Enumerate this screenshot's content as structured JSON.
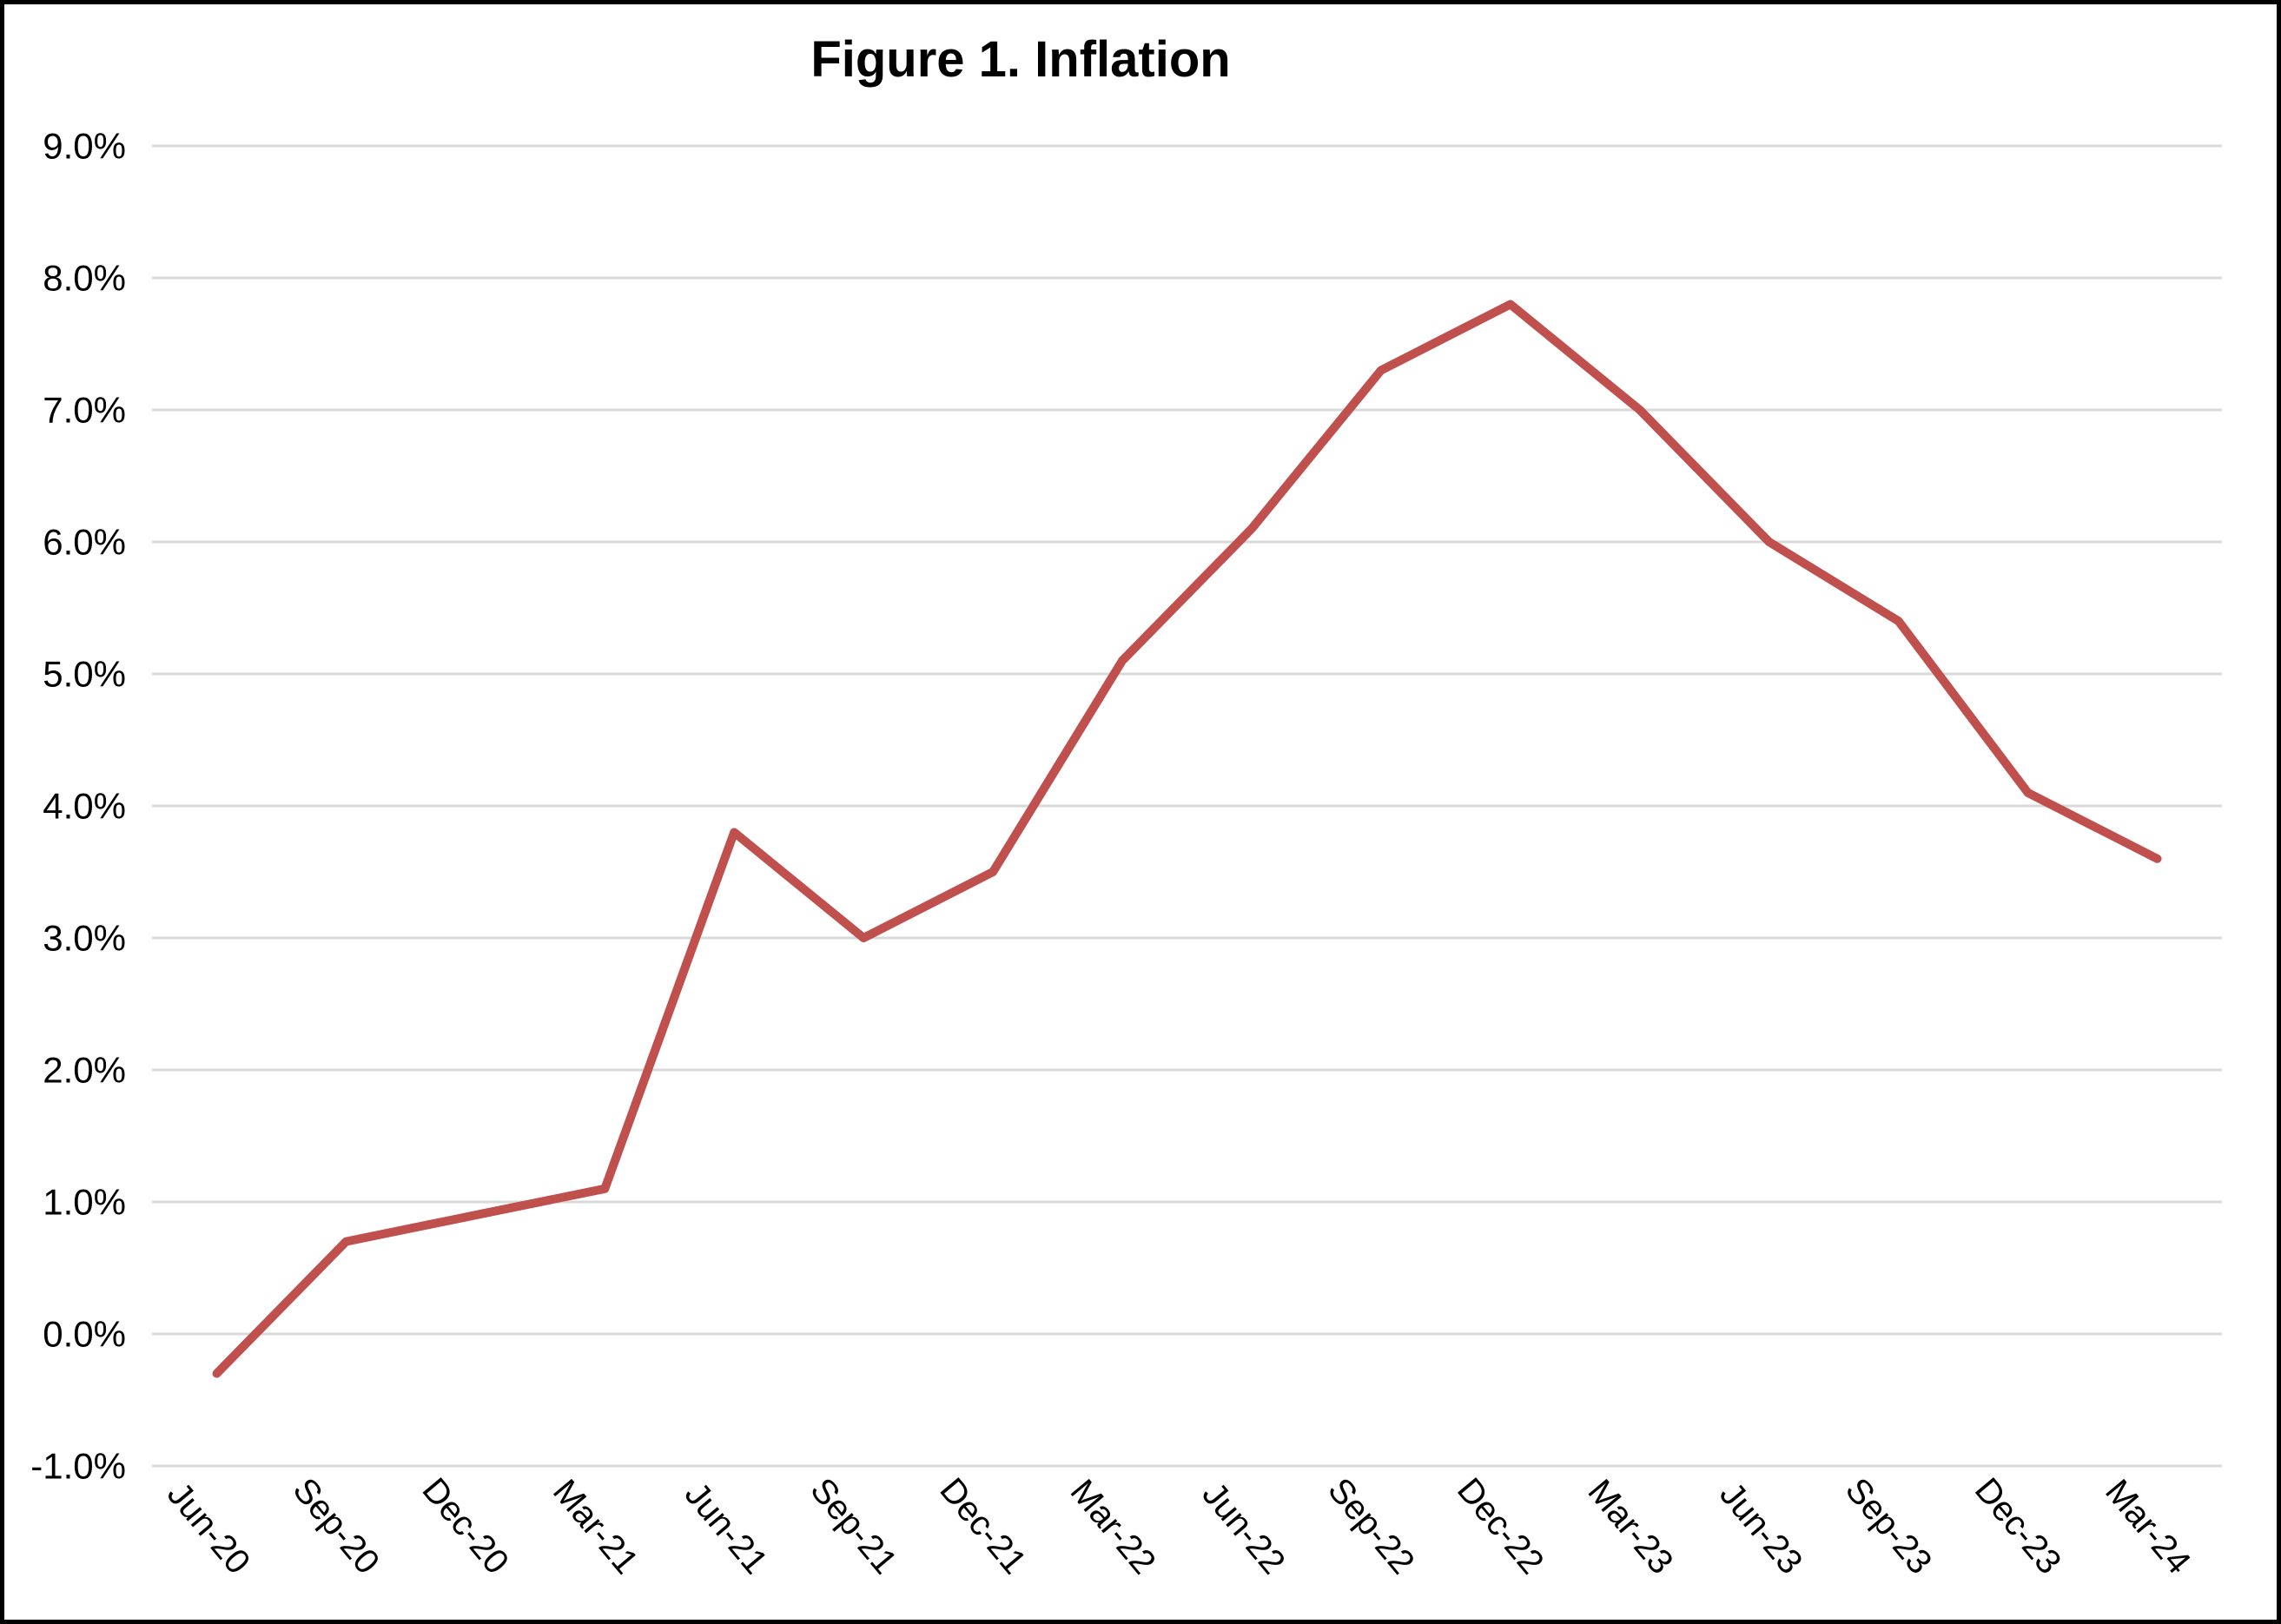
{
  "chart_data": {
    "type": "line",
    "title": "Figure 1. Inflation",
    "xlabel": "",
    "ylabel": "",
    "categories": [
      "Jun-20",
      "Sep-20",
      "Dec-20",
      "Mar-21",
      "Jun-21",
      "Sep-21",
      "Dec-21",
      "Mar-22",
      "Jun-22",
      "Sep-22",
      "Dec-22",
      "Mar-23",
      "Jun-23",
      "Sep-23",
      "Dec-23",
      "Mar-24"
    ],
    "values": [
      -0.3,
      0.7,
      0.9,
      1.1,
      3.8,
      3.0,
      3.5,
      5.1,
      6.1,
      7.3,
      7.8,
      7.0,
      6.0,
      5.4,
      4.1,
      3.6
    ],
    "series_name": "Inflation",
    "ylim": [
      -1,
      9
    ],
    "y_ticks": [
      {
        "value": 9,
        "label": "9.0%"
      },
      {
        "value": 8,
        "label": "8.0%"
      },
      {
        "value": 7,
        "label": "7.0%"
      },
      {
        "value": 6,
        "label": "6.0%"
      },
      {
        "value": 5,
        "label": "5.0%"
      },
      {
        "value": 4,
        "label": "4.0%"
      },
      {
        "value": 3,
        "label": "3.0%"
      },
      {
        "value": 2,
        "label": "2.0%"
      },
      {
        "value": 1,
        "label": "1.0%"
      },
      {
        "value": 0,
        "label": "0.0%"
      },
      {
        "value": -1,
        "label": "-1.0%"
      }
    ],
    "grid": true,
    "legend": "none",
    "colors": {
      "line": "#C0504D",
      "gridline": "#D9D9D9",
      "text": "#000000",
      "background": "#FFFFFF",
      "frame_border": "#000000"
    }
  }
}
